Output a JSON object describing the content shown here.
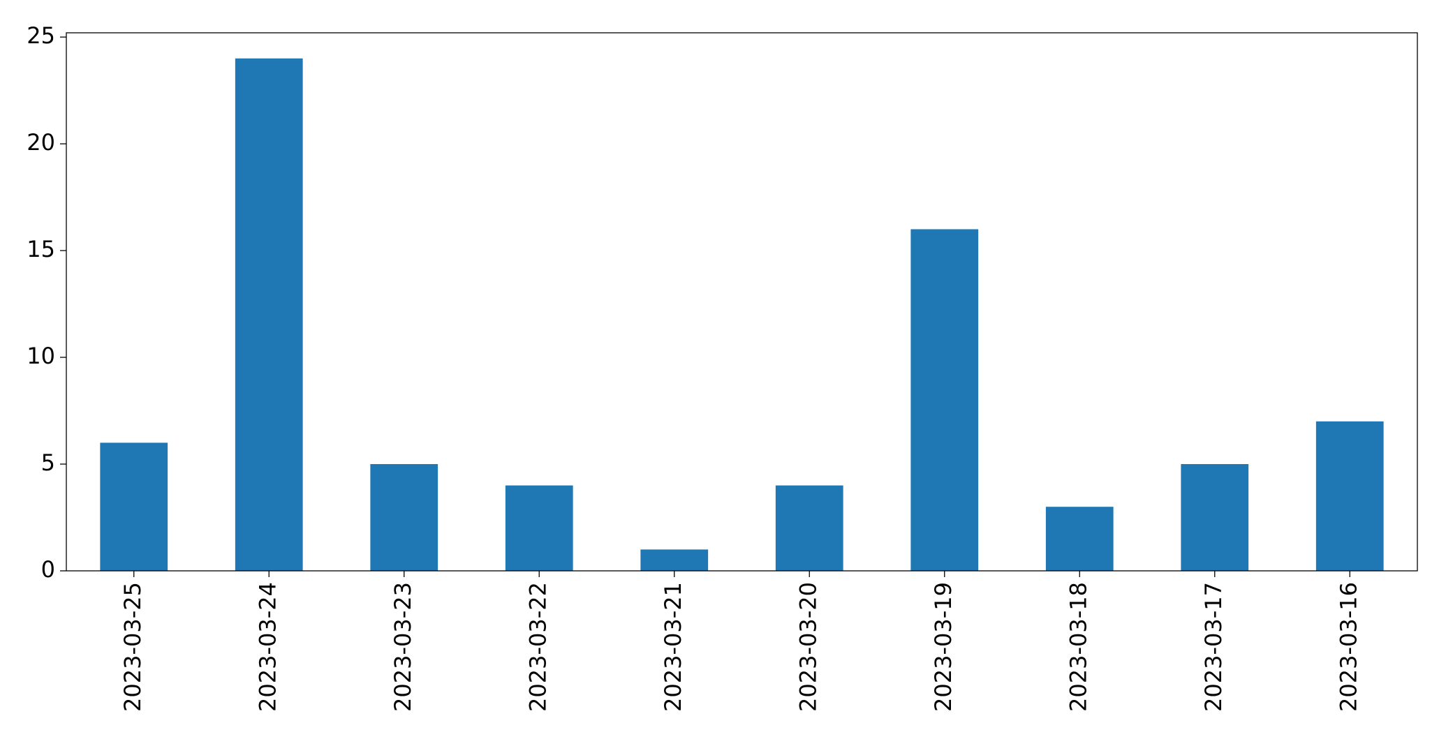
{
  "chart_data": {
    "type": "bar",
    "categories": [
      "2023-03-25",
      "2023-03-24",
      "2023-03-23",
      "2023-03-22",
      "2023-03-21",
      "2023-03-20",
      "2023-03-19",
      "2023-03-18",
      "2023-03-17",
      "2023-03-16"
    ],
    "values": [
      6,
      24,
      5,
      4,
      1,
      4,
      16,
      3,
      5,
      7
    ],
    "color": "#1f77b4",
    "ylim": [
      0,
      25.2
    ],
    "yticks": [
      0,
      5,
      10,
      15,
      20,
      25
    ],
    "grid": false
  }
}
